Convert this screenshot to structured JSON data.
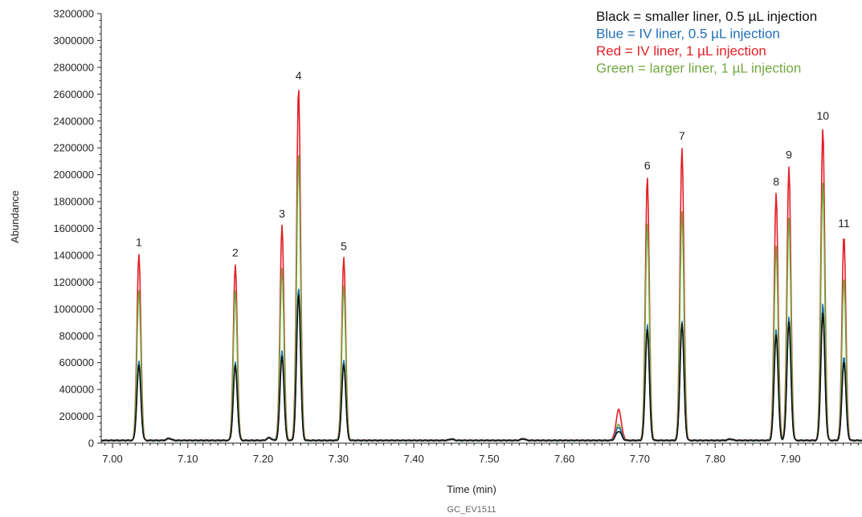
{
  "chart_data": {
    "type": "line",
    "xlabel": "Time (min)",
    "ylabel": "Abundance",
    "footnote": "GC_EV1511",
    "xlim": [
      6.985,
      7.995
    ],
    "ylim": [
      0,
      3200000
    ],
    "x_ticks": [
      7.0,
      7.1,
      7.2,
      7.3,
      7.4,
      7.5,
      7.6,
      7.7,
      7.8,
      7.9
    ],
    "x_tick_labels": [
      "7.00",
      "7.10",
      "7.20",
      "7.30",
      "7.40",
      "7.50",
      "7.60",
      "7.70",
      "7.80",
      "7.90"
    ],
    "y_ticks": [
      0,
      200000,
      400000,
      600000,
      800000,
      1000000,
      1200000,
      1400000,
      1600000,
      1800000,
      2000000,
      2200000,
      2400000,
      2600000,
      2800000,
      3000000,
      3200000
    ],
    "y_tick_labels": [
      "0",
      "200000",
      "400000",
      "600000",
      "800000",
      "1000000",
      "1200000",
      "1400000",
      "1600000",
      "1800000",
      "2000000",
      "2200000",
      "2400000",
      "2600000",
      "2800000",
      "3000000",
      "3200000"
    ],
    "legend": [
      {
        "text": "Black = smaller liner, 0.5 µL injection",
        "color": "#111111"
      },
      {
        "text": "Blue = IV liner, 0.5 µL injection",
        "color": "#1f6fb5"
      },
      {
        "text": "Red = IV liner, 1 µL injection",
        "color": "#e31e26"
      },
      {
        "text": "Green = larger liner, 1 µL injection",
        "color": "#72a83f"
      }
    ],
    "peaks": [
      {
        "label": "1",
        "time": 7.035
      },
      {
        "label": "2",
        "time": 7.163
      },
      {
        "label": "3",
        "time": 7.225
      },
      {
        "label": "4",
        "time": 7.247
      },
      {
        "label": "5",
        "time": 7.307
      },
      {
        "label": "6",
        "time": 7.71
      },
      {
        "label": "7",
        "time": 7.756
      },
      {
        "label": "8",
        "time": 7.881
      },
      {
        "label": "9",
        "time": 7.898
      },
      {
        "label": "10",
        "time": 7.943
      },
      {
        "label": "11",
        "time": 7.971
      }
    ],
    "baseline": 20000,
    "minor_peaks": [
      {
        "time": 7.075,
        "height": 15000
      },
      {
        "time": 7.208,
        "height": 20000
      },
      {
        "time": 7.45,
        "height": 10000
      },
      {
        "time": 7.545,
        "height": 12000
      },
      {
        "time": 7.82,
        "height": 10000
      }
    ],
    "series": [
      {
        "name": "Red = IV liner, 1 µL injection",
        "color": "#e31e26",
        "peak_heights": [
          1390000,
          1310000,
          1600000,
          2630000,
          1360000,
          1960000,
          2180000,
          1840000,
          2040000,
          2330000,
          1530000
        ],
        "bump": {
          "time": 7.672,
          "height": 230000
        }
      },
      {
        "name": "Green = larger liner, 1 µL injection",
        "color": "#72a83f",
        "peak_heights": [
          1120000,
          1110000,
          1280000,
          2140000,
          1150000,
          1620000,
          1710000,
          1450000,
          1660000,
          1930000,
          1220000
        ],
        "bump": {
          "time": 7.672,
          "height": 120000
        }
      },
      {
        "name": "Blue = IV liner, 0.5 µL injection",
        "color": "#1f6fb5",
        "peak_heights": [
          590000,
          580000,
          670000,
          1140000,
          600000,
          870000,
          890000,
          830000,
          920000,
          1020000,
          630000
        ],
        "bump": {
          "time": 7.672,
          "height": 100000
        }
      },
      {
        "name": "Black = smaller liner, 0.5 µL injection",
        "color": "#111111",
        "peak_heights": [
          560000,
          560000,
          630000,
          1100000,
          570000,
          830000,
          870000,
          790000,
          880000,
          950000,
          590000
        ],
        "bump": {
          "time": 7.672,
          "height": 70000
        }
      }
    ]
  }
}
